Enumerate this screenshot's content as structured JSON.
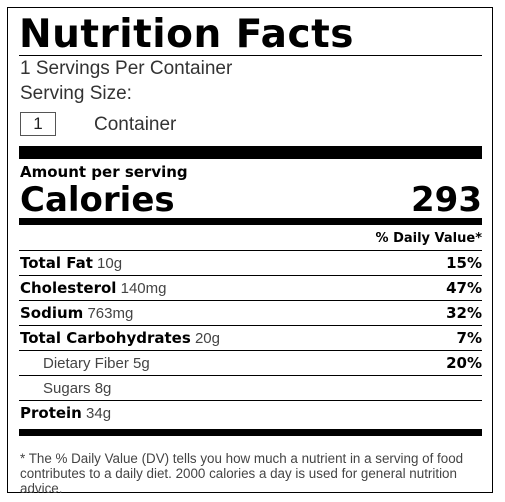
{
  "label": {
    "title": "Nutrition Facts",
    "servings_per_container": "1 Servings Per Container",
    "serving_size_label": "Serving Size:",
    "serving_quantity": "1",
    "serving_unit": "Container",
    "amount_per_serving": "Amount per serving",
    "calories_label": "Calories",
    "calories_value": "293",
    "daily_value_header": "% Daily Value*",
    "nutrients": [
      {
        "name": "Total Fat",
        "amount": "10g",
        "dv": "15%"
      },
      {
        "name": "Cholesterol",
        "amount": "140mg",
        "dv": "47%"
      },
      {
        "name": "Sodium",
        "amount": "763mg",
        "dv": "32%"
      },
      {
        "name": "Total Carbohydrates",
        "amount": "20g",
        "dv": "7%"
      },
      {
        "name": "Dietary Fiber",
        "amount": "5g",
        "dv": "20%"
      },
      {
        "name": "Sugars",
        "amount": "8g",
        "dv": ""
      },
      {
        "name": "Protein",
        "amount": "34g",
        "dv": ""
      }
    ],
    "footnote": "* The % Daily Value (DV) tells you how much a nutrient in a serving of food contributes to a daily diet. 2000 calories a day is used for general nutrition advice."
  }
}
